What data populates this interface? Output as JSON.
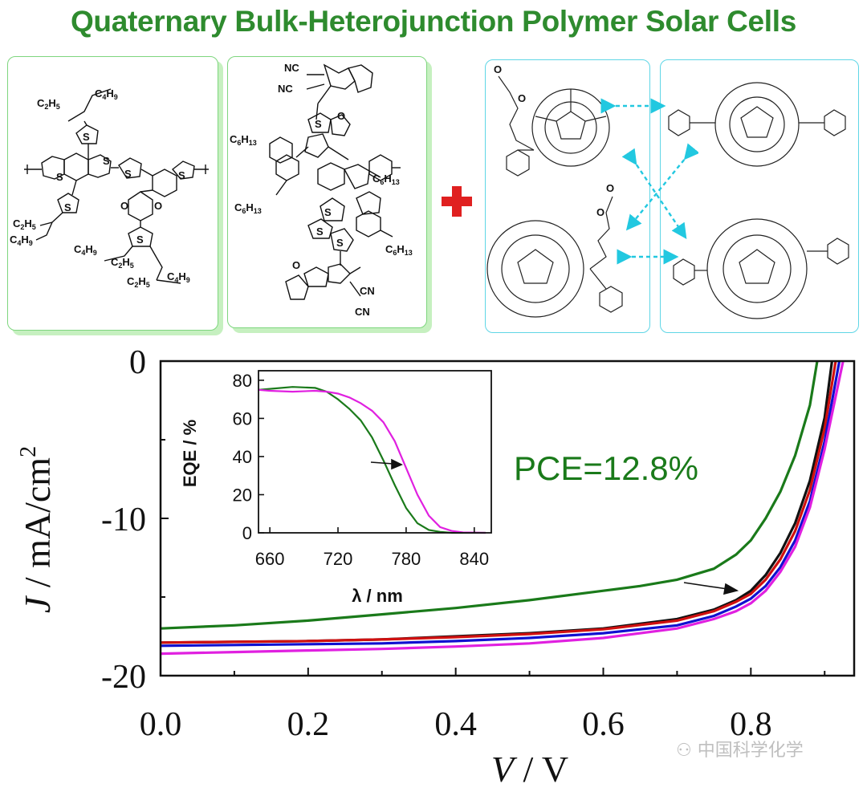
{
  "title": "Quaternary Bulk-Heterojunction Polymer Solar Cells",
  "molecules": {
    "donor": [
      "C2H5",
      "C4H9",
      "S",
      "S",
      "S",
      "S",
      "S",
      "O",
      "O",
      "S",
      "C2H5",
      "C4H9",
      "C4H9",
      "C2H5",
      "C2H5",
      "C4H9"
    ],
    "acceptor": [
      "NC",
      "NC",
      "O",
      "S",
      "C6H13",
      "C6H13",
      "S",
      "C6H13",
      "S",
      "S",
      "C6H13",
      "S",
      "O",
      "CN",
      "CN"
    ],
    "fullerenes": [
      "O",
      "O",
      "O",
      "O"
    ]
  },
  "plus_color": "#e02020",
  "watermark": "中国科学化学",
  "annotation": "PCE=12.8%",
  "chart_data": [
    {
      "type": "line",
      "title": "",
      "xlabel": "V / V",
      "ylabel": "J / mA/cm2",
      "xlim": [
        0,
        0.94
      ],
      "ylim": [
        -20,
        0
      ],
      "x_ticks": [
        "0.0",
        "0.2",
        "0.4",
        "0.6",
        "0.8"
      ],
      "y_ticks": [
        "0",
        "-10",
        "-20"
      ],
      "series": [
        {
          "color": "#1a7a1a",
          "x": [
            0,
            0.1,
            0.2,
            0.3,
            0.4,
            0.5,
            0.6,
            0.65,
            0.7,
            0.75,
            0.78,
            0.8,
            0.82,
            0.84,
            0.86,
            0.88,
            0.89
          ],
          "y": [
            -17.0,
            -16.8,
            -16.5,
            -16.1,
            -15.7,
            -15.2,
            -14.6,
            -14.3,
            -13.9,
            -13.2,
            -12.3,
            -11.4,
            -10.0,
            -8.3,
            -6.0,
            -2.8,
            0
          ]
        },
        {
          "color": "#111111",
          "x": [
            0,
            0.1,
            0.2,
            0.3,
            0.4,
            0.5,
            0.6,
            0.7,
            0.75,
            0.78,
            0.8,
            0.82,
            0.84,
            0.86,
            0.88,
            0.9,
            0.91
          ],
          "y": [
            -17.9,
            -17.85,
            -17.8,
            -17.7,
            -17.5,
            -17.3,
            -17.0,
            -16.4,
            -15.8,
            -15.2,
            -14.6,
            -13.6,
            -12.2,
            -10.3,
            -7.6,
            -3.6,
            0
          ]
        },
        {
          "color": "#d01010",
          "x": [
            0,
            0.1,
            0.2,
            0.3,
            0.4,
            0.5,
            0.6,
            0.7,
            0.75,
            0.78,
            0.8,
            0.82,
            0.84,
            0.86,
            0.88,
            0.9,
            0.915
          ],
          "y": [
            -17.9,
            -17.85,
            -17.8,
            -17.7,
            -17.55,
            -17.35,
            -17.05,
            -16.5,
            -15.9,
            -15.3,
            -14.8,
            -13.9,
            -12.6,
            -10.8,
            -8.2,
            -4.3,
            0
          ]
        },
        {
          "color": "#1010d0",
          "x": [
            0,
            0.1,
            0.2,
            0.3,
            0.4,
            0.5,
            0.6,
            0.7,
            0.75,
            0.78,
            0.8,
            0.82,
            0.84,
            0.86,
            0.88,
            0.9,
            0.92
          ],
          "y": [
            -18.1,
            -18.05,
            -18.0,
            -17.95,
            -17.8,
            -17.6,
            -17.3,
            -16.8,
            -16.2,
            -15.6,
            -15.1,
            -14.3,
            -13.1,
            -11.4,
            -8.9,
            -5.1,
            0
          ]
        },
        {
          "color": "#e020e0",
          "x": [
            0,
            0.1,
            0.2,
            0.3,
            0.4,
            0.5,
            0.6,
            0.7,
            0.75,
            0.78,
            0.8,
            0.82,
            0.84,
            0.86,
            0.88,
            0.9,
            0.925
          ],
          "y": [
            -18.6,
            -18.5,
            -18.4,
            -18.3,
            -18.15,
            -17.95,
            -17.6,
            -17.0,
            -16.4,
            -15.9,
            -15.4,
            -14.6,
            -13.4,
            -11.8,
            -9.3,
            -5.6,
            0
          ]
        }
      ]
    },
    {
      "type": "line",
      "title": "",
      "xlabel": "λ / nm",
      "ylabel": "EQE / %",
      "xlim": [
        650,
        855
      ],
      "ylim": [
        0,
        85
      ],
      "x_ticks": [
        "660",
        "720",
        "780",
        "840"
      ],
      "y_ticks": [
        "0",
        "20",
        "40",
        "60",
        "80"
      ],
      "series": [
        {
          "color": "#1a7a1a",
          "x": [
            650,
            660,
            680,
            700,
            710,
            720,
            730,
            740,
            750,
            760,
            770,
            780,
            790,
            800,
            810,
            820,
            850
          ],
          "y": [
            75,
            75.5,
            76.5,
            76,
            74,
            70,
            65,
            59,
            50,
            38,
            25,
            13,
            5,
            1.5,
            0.5,
            0,
            0
          ]
        },
        {
          "color": "#e020e0",
          "x": [
            650,
            660,
            680,
            700,
            710,
            720,
            730,
            740,
            750,
            760,
            770,
            780,
            790,
            800,
            810,
            820,
            830,
            850
          ],
          "y": [
            75,
            74.5,
            74,
            74.5,
            74,
            73,
            71,
            68,
            64,
            58,
            48,
            34,
            20,
            9,
            3,
            1,
            0.2,
            0
          ]
        }
      ]
    }
  ]
}
